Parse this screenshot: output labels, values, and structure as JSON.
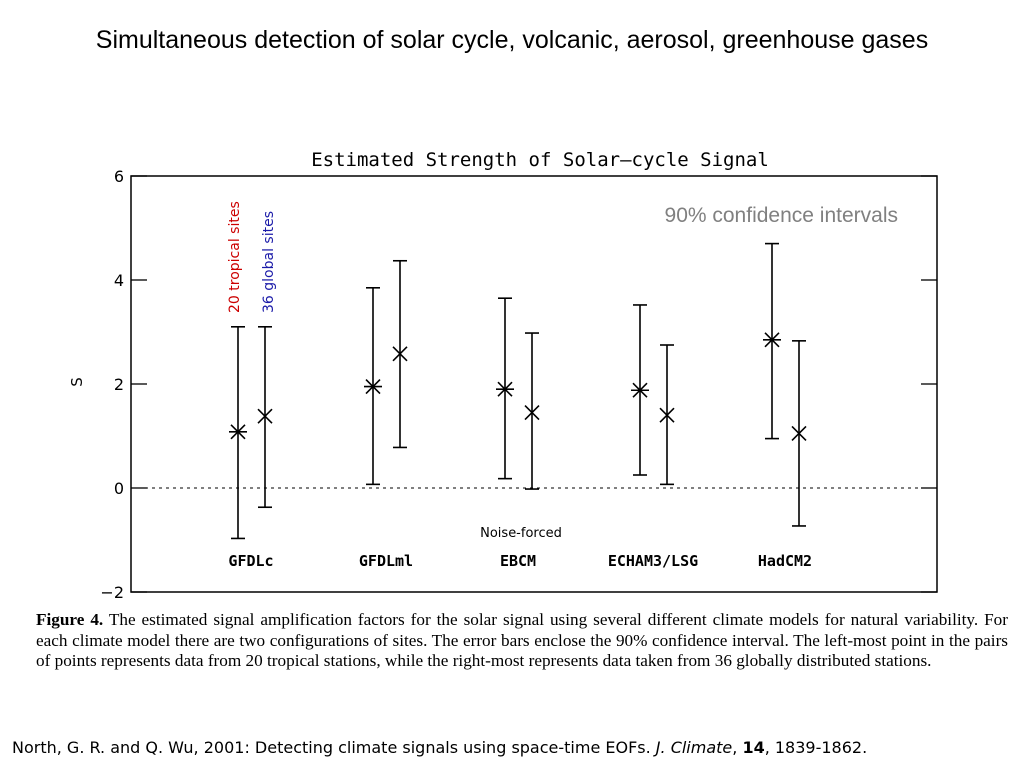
{
  "slide_title": "Simultaneous detection of solar cycle, volcanic, aerosol, greenhouse gases",
  "annotations": {
    "confidence": "90% confidence intervals",
    "tropical_sites": "20 tropical sites",
    "global_sites": "36 global sites",
    "noise_forced": "Noise-forced"
  },
  "colors": {
    "tropical": "#cc0000",
    "global": "#1a1aa8",
    "annotation_gray": "#808080"
  },
  "chart_data": {
    "type": "scatter",
    "title": "Estimated Strength of Solar—cycle Signal",
    "ylabel": "S",
    "xlabel": "",
    "ylim": [
      -2,
      6
    ],
    "yticks": [
      -2,
      0,
      2,
      4,
      6
    ],
    "ytick_labels": [
      "−2",
      "0",
      "2",
      "4",
      "6"
    ],
    "reference_line": 0,
    "categories": [
      "GFDLc",
      "GFDLml",
      "EBCM",
      "ECHAM3/LSG",
      "HadCM2"
    ],
    "series": [
      {
        "marker": "asterisk",
        "values": [
          1.08,
          1.95,
          1.9,
          1.88,
          2.85
        ],
        "lower": [
          -0.97,
          0.07,
          0.18,
          0.25,
          0.95
        ],
        "upper": [
          3.1,
          3.85,
          3.65,
          3.52,
          4.7
        ]
      },
      {
        "marker": "x",
        "values": [
          1.38,
          2.58,
          1.45,
          1.4,
          1.05
        ],
        "lower": [
          -0.37,
          0.78,
          -0.02,
          0.07,
          -0.73
        ],
        "upper": [
          3.1,
          4.37,
          2.98,
          2.75,
          2.83
        ]
      }
    ]
  },
  "caption": {
    "label": "Figure 4.",
    "text": " The estimated signal amplification factors for the solar signal using several different climate models for natural variability. For each climate model there are two configurations of sites. The error bars enclose the 90% confidence interval. The left-most point in the pairs of points represents data from 20 tropical stations, while the right-most represents data taken from 36 globally distributed stations."
  },
  "citation": {
    "authors": "North, G. R. and Q. Wu, 2001: Detecting climate signals using space-time EOFs. ",
    "journal": "J. Climate",
    "sep": ", ",
    "volume": "14",
    "pages": ", 1839-1862."
  }
}
